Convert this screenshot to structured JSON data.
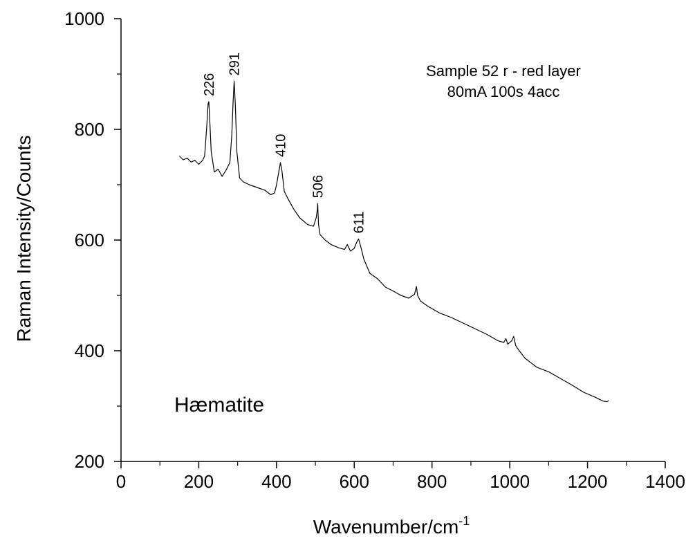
{
  "chart_data": {
    "type": "line",
    "xlabel": "Wavenumber/cm",
    "xlabel_sup": "-1",
    "ylabel": "Raman Intensity/Counts",
    "xlim": [
      0,
      1400
    ],
    "ylim": [
      200,
      1000
    ],
    "x_ticks": [
      0,
      200,
      400,
      600,
      800,
      1000,
      1200,
      1400
    ],
    "x_tick_labels": [
      "0",
      "200",
      "400",
      "600",
      "800",
      "1000",
      "1200",
      "1400"
    ],
    "y_ticks": [
      200,
      400,
      600,
      800,
      1000
    ],
    "y_tick_labels": [
      "200",
      "400",
      "600",
      "800",
      "1000"
    ],
    "grid": false,
    "annotations": {
      "sample_line1": "Sample 52 r - red layer",
      "sample_line2": "80mA 100s 4acc",
      "mineral": "Hæmatite"
    },
    "peaks": [
      {
        "x": 226,
        "y": 850,
        "label": "226"
      },
      {
        "x": 291,
        "y": 887,
        "label": "291"
      },
      {
        "x": 410,
        "y": 740,
        "label": "410"
      },
      {
        "x": 506,
        "y": 666,
        "label": "506"
      },
      {
        "x": 611,
        "y": 602,
        "label": "611"
      }
    ],
    "series": [
      {
        "color": "#000000",
        "x": [
          150,
          160,
          170,
          180,
          190,
          200,
          210,
          215,
          220,
          224,
          226,
          228,
          232,
          240,
          250,
          260,
          270,
          280,
          285,
          288,
          291,
          294,
          298,
          305,
          315,
          330,
          350,
          370,
          385,
          395,
          400,
          405,
          410,
          414,
          420,
          430,
          445,
          460,
          480,
          495,
          502,
          505,
          506,
          508,
          512,
          525,
          540,
          560,
          575,
          582,
          590,
          600,
          605,
          611,
          616,
          625,
          640,
          660,
          680,
          700,
          720,
          740,
          755,
          760,
          763,
          770,
          790,
          820,
          850,
          880,
          910,
          940,
          970,
          985,
          990,
          995,
          1005,
          1010,
          1015,
          1020,
          1040,
          1070,
          1100,
          1130,
          1160,
          1190,
          1220,
          1240,
          1250,
          1255
        ],
        "y": [
          752,
          745,
          748,
          741,
          744,
          737,
          744,
          752,
          800,
          846,
          850,
          820,
          760,
          723,
          728,
          715,
          726,
          740,
          790,
          845,
          887,
          845,
          760,
          712,
          705,
          700,
          695,
          690,
          682,
          685,
          700,
          720,
          740,
          725,
          688,
          674,
          655,
          640,
          628,
          625,
          640,
          655,
          666,
          628,
          610,
          600,
          592,
          586,
          583,
          592,
          580,
          585,
          594,
          602,
          590,
          565,
          540,
          530,
          515,
          508,
          500,
          495,
          502,
          516,
          500,
          490,
          480,
          468,
          460,
          450,
          440,
          430,
          418,
          415,
          422,
          412,
          418,
          426,
          410,
          404,
          386,
          370,
          362,
          350,
          338,
          325,
          316,
          309,
          308,
          310
        ]
      }
    ]
  }
}
